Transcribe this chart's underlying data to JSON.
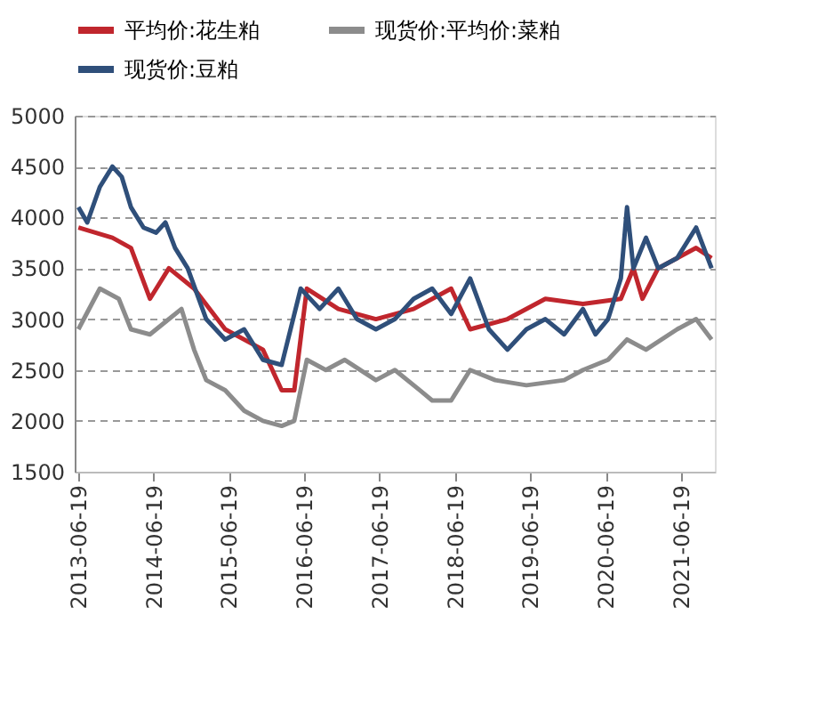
{
  "chart_data": {
    "type": "line",
    "legend": "top",
    "grid": "y",
    "xlim": [
      "2013-06-01",
      "2021-12-01"
    ],
    "xticks": [
      "2013-06-19",
      "2014-06-19",
      "2015-06-19",
      "2016-06-19",
      "2017-06-19",
      "2018-06-19",
      "2019-06-19",
      "2020-06-19",
      "2021-06-19"
    ],
    "ylim": [
      1500,
      5000
    ],
    "yticks": [
      1500,
      2000,
      2500,
      3000,
      3500,
      4000,
      4500,
      5000
    ],
    "series": [
      {
        "name": "平均价:花生粕",
        "color": "#c0262d",
        "x": [
          "2013-06-19",
          "2013-12-01",
          "2014-03-01",
          "2014-06-01",
          "2014-09-01",
          "2015-01-01",
          "2015-06-01",
          "2015-12-01",
          "2016-03-01",
          "2016-05-01",
          "2016-07-01",
          "2016-12-01",
          "2017-06-01",
          "2017-12-01",
          "2018-06-01",
          "2018-09-01",
          "2019-03-01",
          "2019-09-01",
          "2020-03-01",
          "2020-09-01",
          "2020-11-01",
          "2020-12-15",
          "2021-03-01",
          "2021-06-01",
          "2021-09-01",
          "2021-11-15"
        ],
        "values": [
          3900,
          3800,
          3700,
          3200,
          3500,
          3300,
          2900,
          2700,
          2300,
          2300,
          3300,
          3100,
          3000,
          3100,
          3300,
          2900,
          3000,
          3200,
          3150,
          3200,
          3500,
          3200,
          3500,
          3600,
          3700,
          3600
        ]
      },
      {
        "name": "现货价:平均价:菜粕",
        "color": "#8c8c8c",
        "x": [
          "2013-06-19",
          "2013-10-01",
          "2014-01-01",
          "2014-03-01",
          "2014-06-01",
          "2014-09-01",
          "2014-11-01",
          "2015-01-01",
          "2015-03-01",
          "2015-06-01",
          "2015-09-01",
          "2015-12-01",
          "2016-03-01",
          "2016-05-01",
          "2016-07-01",
          "2016-10-01",
          "2017-01-01",
          "2017-06-01",
          "2017-09-01",
          "2018-01-01",
          "2018-03-01",
          "2018-06-01",
          "2018-09-01",
          "2019-01-01",
          "2019-06-01",
          "2019-12-01",
          "2020-03-01",
          "2020-07-01",
          "2020-10-01",
          "2021-01-01",
          "2021-06-01",
          "2021-09-01",
          "2021-11-15"
        ],
        "values": [
          2900,
          3300,
          3200,
          2900,
          2850,
          3000,
          3100,
          2700,
          2400,
          2300,
          2100,
          2000,
          1950,
          2000,
          2600,
          2500,
          2600,
          2400,
          2500,
          2300,
          2200,
          2200,
          2500,
          2400,
          2350,
          2400,
          2500,
          2600,
          2800,
          2700,
          2900,
          3000,
          2800
        ]
      },
      {
        "name": "现货价:豆粕",
        "color": "#2f4f7a",
        "x": [
          "2013-06-19",
          "2013-08-01",
          "2013-10-01",
          "2013-12-01",
          "2014-01-15",
          "2014-03-01",
          "2014-05-01",
          "2014-07-01",
          "2014-08-15",
          "2014-10-01",
          "2014-12-01",
          "2015-03-01",
          "2015-06-01",
          "2015-09-01",
          "2015-12-01",
          "2016-03-01",
          "2016-06-01",
          "2016-09-01",
          "2016-12-01",
          "2017-03-01",
          "2017-06-01",
          "2017-09-01",
          "2017-12-01",
          "2018-03-01",
          "2018-06-01",
          "2018-09-01",
          "2018-12-01",
          "2019-03-01",
          "2019-06-01",
          "2019-09-01",
          "2019-12-01",
          "2020-03-01",
          "2020-05-01",
          "2020-07-01",
          "2020-09-01",
          "2020-10-01",
          "2020-11-01",
          "2021-01-01",
          "2021-03-01",
          "2021-06-01",
          "2021-09-01",
          "2021-11-15"
        ],
        "values": [
          4100,
          3950,
          4300,
          4500,
          4400,
          4100,
          3900,
          3850,
          3950,
          3700,
          3500,
          3000,
          2800,
          2900,
          2600,
          2550,
          3300,
          3100,
          3300,
          3000,
          2900,
          3000,
          3200,
          3300,
          3050,
          3400,
          2900,
          2700,
          2900,
          3000,
          2850,
          3100,
          2850,
          3000,
          3400,
          4100,
          3500,
          3800,
          3500,
          3600,
          3900,
          3500
        ]
      }
    ]
  }
}
